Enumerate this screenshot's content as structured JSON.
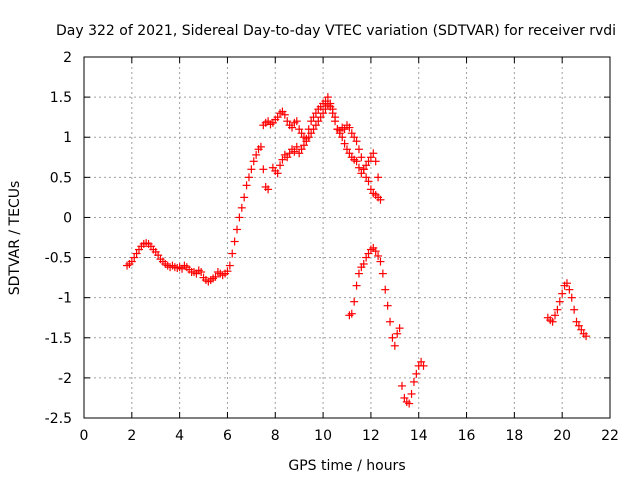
{
  "chart_data": {
    "type": "scatter",
    "title": "Day 322 of 2021, Sidereal Day-to-day VTEC variation (SDTVAR) for receiver rvdi",
    "xlabel": "GPS time / hours",
    "ylabel": "SDTVAR / TECUs",
    "xlim": [
      0,
      22
    ],
    "ylim": [
      -2.5,
      2
    ],
    "xticks": [
      0,
      2,
      4,
      6,
      8,
      10,
      12,
      14,
      16,
      18,
      20,
      22
    ],
    "yticks": [
      -2.5,
      -2,
      -1.5,
      -1,
      -0.5,
      0,
      0.5,
      1,
      1.5,
      2
    ],
    "xtick_labels": [
      "0",
      "2",
      "4",
      "6",
      "8",
      "10",
      "12",
      "14",
      "16",
      "18",
      "20",
      "22"
    ],
    "ytick_labels": [
      "-2.5",
      "-2",
      "-1.5",
      "-1",
      "-0.5",
      "0",
      "0.5",
      "1",
      "1.5",
      "2"
    ],
    "grid": true,
    "marker": "+",
    "color": "#ff0000",
    "series": [
      {
        "name": "",
        "x": [
          1.8,
          1.9,
          2.0,
          2.1,
          2.2,
          2.3,
          2.4,
          2.5,
          2.6,
          2.7,
          2.8,
          2.9,
          3.0,
          3.1,
          3.2,
          3.3,
          3.4,
          3.5,
          3.6,
          3.7,
          3.8,
          3.9,
          4.0,
          4.1,
          4.2,
          4.3,
          4.4,
          4.5,
          4.6,
          4.7,
          4.8,
          4.9,
          5.0,
          5.1,
          5.2,
          5.3,
          5.4,
          5.5,
          5.6,
          5.7,
          5.8,
          5.9,
          6.0,
          6.1,
          6.2,
          6.3,
          6.4,
          6.5,
          6.6,
          6.7,
          6.8,
          6.9,
          7.0,
          7.1,
          7.2,
          7.3,
          7.4,
          7.5,
          7.6,
          7.7
        ],
        "y": [
          -0.6,
          -0.58,
          -0.55,
          -0.5,
          -0.45,
          -0.4,
          -0.36,
          -0.33,
          -0.32,
          -0.33,
          -0.36,
          -0.4,
          -0.43,
          -0.47,
          -0.52,
          -0.55,
          -0.58,
          -0.6,
          -0.62,
          -0.6,
          -0.62,
          -0.63,
          -0.62,
          -0.64,
          -0.6,
          -0.62,
          -0.65,
          -0.68,
          -0.68,
          -0.7,
          -0.66,
          -0.68,
          -0.75,
          -0.78,
          -0.8,
          -0.78,
          -0.76,
          -0.74,
          -0.68,
          -0.7,
          -0.72,
          -0.7,
          -0.67,
          -0.6,
          -0.45,
          -0.3,
          -0.15,
          0.0,
          0.12,
          0.25,
          0.4,
          0.5,
          0.6,
          0.7,
          0.78,
          0.85,
          0.88,
          0.6,
          0.38,
          0.35
        ]
      },
      {
        "name": "",
        "x": [
          7.5,
          7.6,
          7.7,
          7.8,
          7.9,
          8.0,
          8.1,
          8.2,
          8.3,
          8.4,
          8.5,
          8.6,
          8.7,
          8.8,
          8.9,
          9.0,
          9.1,
          9.2,
          9.3,
          9.4,
          9.5,
          9.6,
          9.7,
          9.8,
          9.9,
          10.0,
          10.1,
          10.2,
          10.3,
          10.4,
          10.5,
          10.6,
          10.7,
          10.8,
          10.9,
          11.0,
          11.1,
          11.2,
          11.3,
          11.4,
          11.5,
          11.6,
          11.7,
          11.8,
          11.9,
          12.0,
          12.1,
          12.2,
          12.3,
          12.4
        ],
        "y": [
          1.15,
          1.18,
          1.2,
          1.16,
          1.18,
          1.22,
          1.25,
          1.3,
          1.32,
          1.28,
          1.2,
          1.15,
          1.12,
          1.18,
          1.2,
          1.1,
          1.05,
          1.0,
          0.98,
          1.1,
          1.2,
          1.25,
          1.3,
          1.35,
          1.38,
          1.42,
          1.45,
          1.5,
          1.42,
          1.35,
          1.25,
          1.1,
          1.08,
          1.12,
          1.1,
          1.15,
          1.12,
          1.05,
          1.0,
          0.95,
          0.85,
          0.75,
          0.6,
          0.5,
          0.45,
          0.35,
          0.3,
          0.28,
          0.25,
          0.22
        ]
      },
      {
        "name": "",
        "x": [
          7.9,
          8.0,
          8.1,
          8.2,
          8.3,
          8.4,
          8.5,
          8.6,
          8.7,
          8.8,
          8.9,
          9.0,
          9.1,
          9.2,
          9.3,
          9.4,
          9.5,
          9.6,
          9.7,
          9.8,
          9.9,
          10.0,
          10.1,
          10.2,
          10.3,
          10.4,
          10.5,
          10.6,
          10.7,
          10.8,
          10.9,
          11.0,
          11.1,
          11.2,
          11.3,
          11.4,
          11.5,
          11.6,
          11.7,
          11.8,
          11.9,
          12.0,
          12.1,
          12.2,
          12.3
        ],
        "y": [
          0.62,
          0.58,
          0.55,
          0.65,
          0.72,
          0.78,
          0.75,
          0.8,
          0.85,
          0.82,
          0.88,
          0.8,
          0.85,
          0.9,
          0.95,
          1.0,
          1.05,
          1.1,
          1.15,
          1.2,
          1.25,
          1.3,
          1.35,
          1.4,
          1.38,
          1.3,
          1.2,
          1.1,
          1.05,
          1.0,
          0.92,
          0.85,
          0.8,
          0.75,
          0.72,
          0.7,
          0.62,
          0.55,
          0.6,
          0.65,
          0.7,
          0.75,
          0.8,
          0.7,
          0.5
        ]
      },
      {
        "name": "",
        "x": [
          11.1,
          11.2,
          11.3,
          11.4,
          11.5,
          11.6,
          11.7,
          11.8,
          11.9,
          12.0,
          12.1,
          12.2,
          12.3,
          12.4,
          12.5,
          12.6,
          12.7,
          12.8,
          12.9,
          13.0,
          13.1,
          13.2
        ],
        "y": [
          -1.22,
          -1.2,
          -1.05,
          -0.85,
          -0.7,
          -0.62,
          -0.58,
          -0.5,
          -0.45,
          -0.4,
          -0.38,
          -0.42,
          -0.48,
          -0.55,
          -0.7,
          -0.9,
          -1.1,
          -1.3,
          -1.5,
          -1.6,
          -1.45,
          -1.38
        ]
      },
      {
        "name": "",
        "x": [
          13.3,
          13.4,
          13.5,
          13.6,
          13.7,
          13.8,
          13.9,
          14.0,
          14.1,
          14.2
        ],
        "y": [
          -2.1,
          -2.25,
          -2.3,
          -2.32,
          -2.2,
          -2.05,
          -1.95,
          -1.85,
          -1.8,
          -1.85
        ]
      },
      {
        "name": "",
        "x": [
          19.4,
          19.5,
          19.6,
          19.7,
          19.8,
          19.9,
          20.0,
          20.1,
          20.2,
          20.3,
          20.4,
          20.5,
          20.6,
          20.7,
          20.8,
          20.9,
          21.0
        ],
        "y": [
          -1.25,
          -1.28,
          -1.3,
          -1.22,
          -1.15,
          -1.05,
          -0.95,
          -0.85,
          -0.82,
          -0.9,
          -1.0,
          -1.15,
          -1.3,
          -1.35,
          -1.4,
          -1.45,
          -1.48
        ]
      }
    ]
  }
}
